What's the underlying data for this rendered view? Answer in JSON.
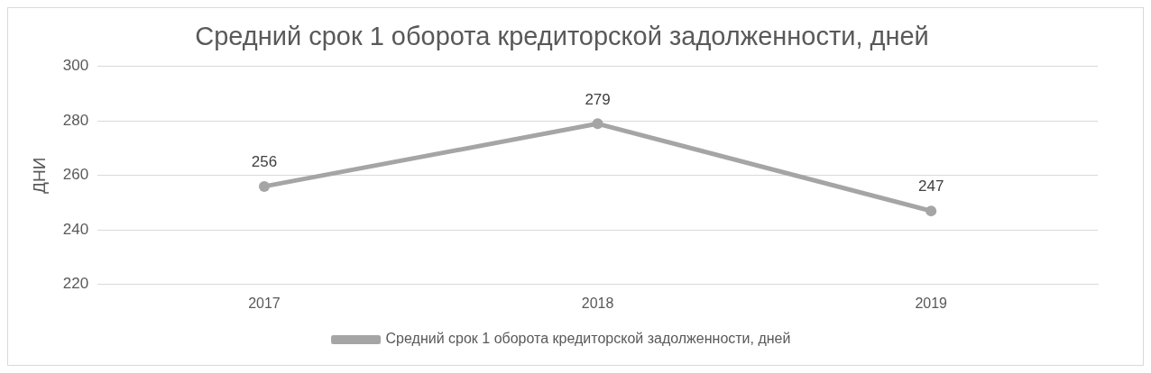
{
  "chart_data": {
    "type": "line",
    "title": "Средний срок 1 оборота кредиторской задолженности, дней",
    "ylabel": "ДНИ",
    "categories": [
      "2017",
      "2018",
      "2019"
    ],
    "series": [
      {
        "name": "Средний срок 1 оборота кредиторской задолженности, дней",
        "color": "#a5a5a5",
        "values": [
          256,
          279,
          247
        ]
      }
    ],
    "ylim": [
      220,
      300
    ],
    "yticks": [
      220,
      240,
      260,
      280,
      300
    ],
    "grid": "y",
    "legend": "bottom",
    "marker": "circle",
    "line_style": "solid",
    "data_labels": true
  }
}
